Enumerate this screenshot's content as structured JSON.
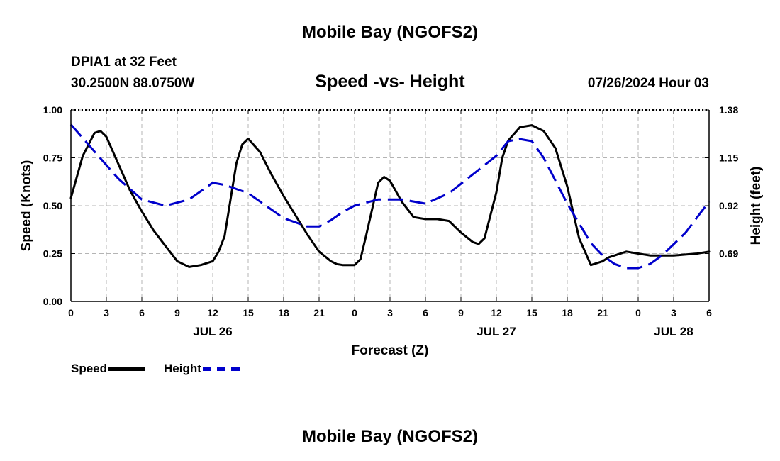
{
  "header": {
    "main_title": "Mobile Bay (NGOFS2)",
    "station_line1": "DPIA1 at 32 Feet",
    "station_line2": "30.2500N  88.0750W",
    "chart_title": "Speed -vs- Height",
    "timestamp": "07/26/2024 Hour 03"
  },
  "footer": {
    "title": "Mobile Bay (NGOFS2)"
  },
  "legend": {
    "speed_label": "Speed",
    "height_label": "Height"
  },
  "colors": {
    "speed": "#000000",
    "height": "#0000cc",
    "grid": "#b4b4b4"
  },
  "chart_data": {
    "type": "line",
    "title": "Speed -vs- Height",
    "xlabel": "Forecast (Z)",
    "ylabel_left": "Speed (Knots)",
    "ylabel_right": "Height (feet)",
    "x_tick_labels": [
      "0",
      "3",
      "6",
      "9",
      "12",
      "15",
      "18",
      "21",
      "0",
      "3",
      "6",
      "9",
      "12",
      "15",
      "18",
      "21",
      "0",
      "3",
      "6"
    ],
    "x_range_hours": [
      0,
      54
    ],
    "date_labels": [
      {
        "label": "JUL 26",
        "hour": 12
      },
      {
        "label": "JUL 27",
        "hour": 36
      },
      {
        "label": "JUL 28",
        "hour": 51
      }
    ],
    "ylim_left": [
      0,
      1.0
    ],
    "yticks_left": [
      "0.00",
      "0.25",
      "0.50",
      "0.75",
      "1.00"
    ],
    "ylim_right": [
      0.46,
      1.38
    ],
    "yticks_right": [
      "0.69",
      "0.92",
      "1.15",
      "1.38"
    ],
    "grid": true,
    "legend_position": "bottom-left",
    "series": [
      {
        "name": "Speed",
        "axis": "left",
        "style": "solid",
        "x": [
          0,
          1,
          2,
          2.5,
          3,
          4,
          5,
          6,
          7,
          8,
          9,
          10,
          11,
          12,
          12.5,
          13,
          14,
          14.5,
          15,
          16,
          17,
          18,
          19,
          20,
          21,
          22,
          22.5,
          23,
          23.5,
          24,
          24.5,
          25,
          26,
          26.5,
          27,
          28,
          29,
          30,
          31,
          32,
          33,
          34,
          34.5,
          35,
          36,
          36.5,
          37,
          38,
          39,
          40,
          41,
          42,
          43,
          44,
          45,
          45.5,
          46,
          47,
          48,
          49,
          50,
          51,
          52,
          53,
          54
        ],
        "y": [
          0.54,
          0.76,
          0.88,
          0.89,
          0.86,
          0.72,
          0.58,
          0.47,
          0.37,
          0.29,
          0.21,
          0.18,
          0.19,
          0.21,
          0.26,
          0.34,
          0.72,
          0.82,
          0.85,
          0.78,
          0.66,
          0.55,
          0.45,
          0.35,
          0.26,
          0.21,
          0.195,
          0.19,
          0.19,
          0.19,
          0.22,
          0.35,
          0.62,
          0.65,
          0.63,
          0.52,
          0.44,
          0.43,
          0.43,
          0.42,
          0.36,
          0.31,
          0.3,
          0.33,
          0.57,
          0.75,
          0.84,
          0.91,
          0.92,
          0.89,
          0.8,
          0.6,
          0.33,
          0.19,
          0.21,
          0.23,
          0.24,
          0.26,
          0.25,
          0.24,
          0.24,
          0.24,
          0.245,
          0.25,
          0.26
        ]
      },
      {
        "name": "Height",
        "axis": "right",
        "style": "dashed",
        "x": [
          0,
          2,
          4,
          6,
          8,
          10,
          11,
          12,
          13,
          14,
          15,
          16,
          18,
          20,
          21,
          22,
          23,
          24,
          26,
          28,
          30,
          32,
          34,
          36,
          37,
          38,
          39,
          40,
          42,
          44,
          45,
          46,
          47,
          48,
          49,
          50,
          52,
          54
        ],
        "y": [
          1.31,
          1.18,
          1.05,
          0.95,
          0.92,
          0.95,
          0.99,
          1.03,
          1.02,
          1.0,
          0.98,
          0.94,
          0.86,
          0.82,
          0.82,
          0.85,
          0.89,
          0.92,
          0.95,
          0.95,
          0.93,
          0.98,
          1.07,
          1.16,
          1.23,
          1.24,
          1.23,
          1.15,
          0.93,
          0.74,
          0.68,
          0.64,
          0.62,
          0.62,
          0.64,
          0.68,
          0.79,
          0.94
        ]
      }
    ]
  }
}
